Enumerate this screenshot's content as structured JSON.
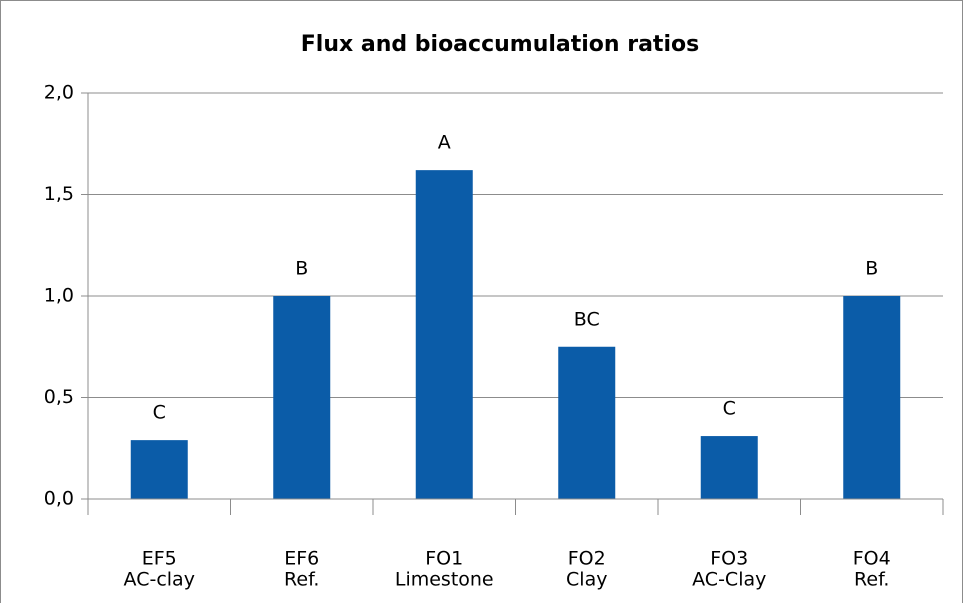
{
  "chart_data": {
    "type": "bar",
    "title": "Flux and bioaccumulation ratios",
    "categories": [
      "EF5",
      "EF6",
      "FO1",
      "FO2",
      "FO3",
      "FO4"
    ],
    "subcategories": [
      "AC-clay",
      "Ref.",
      "Limestone",
      "Clay",
      "AC-Clay",
      "Ref."
    ],
    "values": [
      0.29,
      1.0,
      1.62,
      0.75,
      0.31,
      1.0
    ],
    "annotations": [
      "C",
      "B",
      "A",
      "BC",
      "C",
      "B"
    ],
    "color": "#0b5ca8",
    "ylim": [
      0,
      2
    ],
    "yticks": [
      {
        "value": 0,
        "label": "0,0"
      },
      {
        "value": 0.5,
        "label": "0,5"
      },
      {
        "value": 1,
        "label": "1,0"
      },
      {
        "value": 1.5,
        "label": "1,5"
      },
      {
        "value": 2,
        "label": "2,0"
      }
    ],
    "grid": true
  }
}
